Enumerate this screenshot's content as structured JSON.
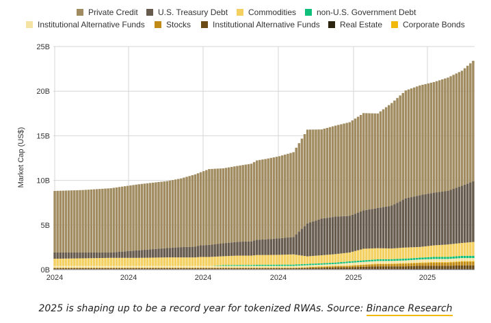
{
  "caption": {
    "text": "2025 is shaping up to be a record year for tokenized RWAs. Source: ",
    "link": "Binance Research",
    "link_color": "#f0b90b"
  },
  "chart_data": {
    "type": "bar",
    "stacked": true,
    "xlabel": "",
    "ylabel": "Market Cap (US$)",
    "ylim": [
      0,
      25
    ],
    "yticks": [
      "0B",
      "5B",
      "10B",
      "15B",
      "20B",
      "25B"
    ],
    "xticks": [
      "2024",
      "2024",
      "2024",
      "2024",
      "2025",
      "2025"
    ],
    "grid": true,
    "legend_position": "top",
    "legend": [
      {
        "name": "Private Credit",
        "color": "#a08c60"
      },
      {
        "name": "U.S. Treasury Debt",
        "color": "#675b4e"
      },
      {
        "name": "Commodities",
        "color": "#f3d05f"
      },
      {
        "name": "non-U.S. Government Debt",
        "color": "#0dbf7a"
      },
      {
        "name": "Institutional Alternative Funds",
        "color": "#f5e3a4"
      },
      {
        "name": "Stocks",
        "color": "#c08a16"
      },
      {
        "name": "Institutional Alternative Funds",
        "color": "#6b4a16"
      },
      {
        "name": "Real Estate",
        "color": "#2d2410"
      },
      {
        "name": "Corporate Bonds",
        "color": "#f0b90b"
      }
    ],
    "x_knots": [
      0,
      10,
      20,
      30,
      40,
      45,
      50,
      52,
      55,
      60,
      65,
      70,
      72,
      75,
      80,
      85,
      90,
      95,
      100,
      105,
      110,
      115,
      120,
      125,
      130,
      135,
      140,
      145,
      149
    ],
    "series": [
      {
        "name": "Real Estate",
        "values": [
          0.05,
          0.05,
          0.05,
          0.05,
          0.05,
          0.05,
          0.05,
          0.05,
          0.05,
          0.05,
          0.05,
          0.05,
          0.05,
          0.05,
          0.05,
          0.05,
          0.06,
          0.06,
          0.06,
          0.06,
          0.07,
          0.07,
          0.07,
          0.07,
          0.08,
          0.08,
          0.08,
          0.08,
          0.08
        ]
      },
      {
        "name": "Institutional Alternative Funds",
        "values": [
          0.1,
          0.1,
          0.1,
          0.1,
          0.1,
          0.1,
          0.1,
          0.1,
          0.1,
          0.1,
          0.1,
          0.1,
          0.1,
          0.1,
          0.1,
          0.1,
          0.12,
          0.15,
          0.2,
          0.2,
          0.25,
          0.3,
          0.3,
          0.3,
          0.35,
          0.35,
          0.35,
          0.4,
          0.4
        ]
      },
      {
        "name": "Stocks",
        "values": [
          0.05,
          0.05,
          0.05,
          0.05,
          0.05,
          0.05,
          0.05,
          0.05,
          0.05,
          0.05,
          0.05,
          0.05,
          0.05,
          0.05,
          0.05,
          0.05,
          0.08,
          0.1,
          0.12,
          0.15,
          0.2,
          0.25,
          0.25,
          0.3,
          0.3,
          0.35,
          0.35,
          0.4,
          0.4
        ]
      },
      {
        "name": "Corporate Bonds",
        "values": [
          0.02,
          0.02,
          0.02,
          0.02,
          0.02,
          0.02,
          0.02,
          0.02,
          0.02,
          0.02,
          0.02,
          0.02,
          0.02,
          0.02,
          0.02,
          0.02,
          0.03,
          0.05,
          0.05,
          0.05,
          0.05,
          0.05,
          0.06,
          0.06,
          0.06,
          0.07,
          0.07,
          0.07,
          0.07
        ]
      },
      {
        "name": "Institutional Alternative Funds",
        "values": [
          0.2,
          0.2,
          0.2,
          0.2,
          0.2,
          0.2,
          0.2,
          0.2,
          0.2,
          0.2,
          0.2,
          0.2,
          0.2,
          0.2,
          0.2,
          0.2,
          0.2,
          0.2,
          0.2,
          0.3,
          0.3,
          0.3,
          0.3,
          0.3,
          0.35,
          0.35,
          0.35,
          0.35,
          0.35
        ]
      },
      {
        "name": "non-U.S. Government Debt",
        "values": [
          0,
          0,
          0,
          0,
          0,
          0,
          0,
          0,
          0,
          0.08,
          0.1,
          0.1,
          0.12,
          0.12,
          0.14,
          0.14,
          0.15,
          0.15,
          0.16,
          0.16,
          0.17,
          0.18,
          0.19,
          0.2,
          0.2,
          0.22,
          0.22,
          0.24,
          0.25
        ]
      },
      {
        "name": "Commodities",
        "values": [
          0.8,
          0.85,
          0.9,
          0.9,
          0.95,
          0.95,
          0.95,
          1.0,
          1.0,
          1.0,
          1.05,
          1.05,
          1.1,
          1.1,
          1.1,
          1.15,
          0.85,
          0.9,
          0.95,
          1.0,
          1.3,
          1.25,
          1.2,
          1.25,
          1.2,
          1.3,
          1.4,
          1.45,
          1.55
        ]
      },
      {
        "name": "U.S. Treasury Debt",
        "values": [
          0.7,
          0.65,
          0.6,
          0.85,
          1.05,
          1.15,
          1.2,
          1.3,
          1.35,
          1.45,
          1.55,
          1.6,
          1.7,
          1.75,
          1.85,
          1.95,
          3.7,
          4.1,
          4.2,
          4.1,
          4.3,
          4.5,
          4.8,
          5.5,
          5.8,
          5.9,
          6.0,
          6.4,
          6.8
        ]
      },
      {
        "name": "Private Credit",
        "values": [
          6.9,
          7.0,
          7.2,
          7.4,
          7.5,
          7.7,
          8.1,
          8.2,
          8.5,
          8.4,
          8.5,
          8.7,
          8.9,
          9.0,
          9.2,
          9.5,
          10.5,
          10.0,
          10.2,
          10.5,
          10.9,
          10.6,
          11.5,
          12.1,
          12.3,
          12.4,
          12.7,
          12.9,
          13.5
        ]
      }
    ]
  }
}
